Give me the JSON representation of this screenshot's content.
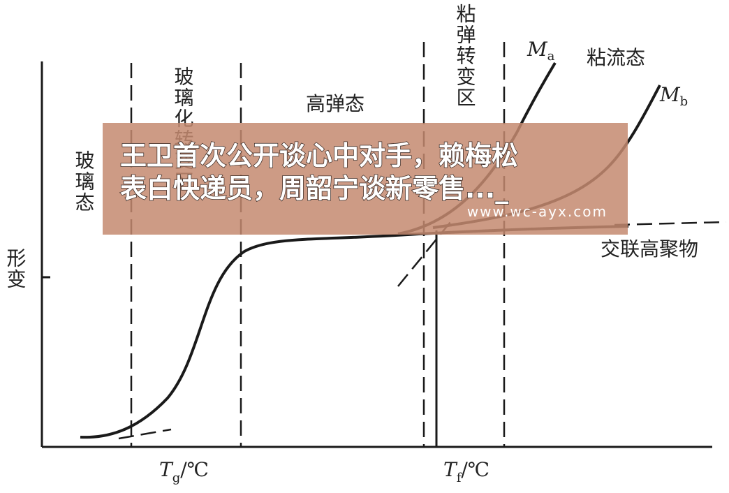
{
  "figure": {
    "y_axis_label": "形变",
    "regions": [
      "玻璃态",
      "玻璃化转变区",
      "高弹态",
      "粘弹转变区",
      "粘流态"
    ],
    "curves": [
      {
        "main": "M",
        "sub": "a"
      },
      {
        "main": "M",
        "sub": "b"
      }
    ],
    "crosslinked_label": "交联高聚物",
    "x_ticks": [
      {
        "main": "T",
        "sub": "g",
        "unit": "/℃"
      },
      {
        "main": "T",
        "sub": "f",
        "unit": "/℃"
      }
    ]
  },
  "banner": {
    "lines": [
      "王卫首次公开谈心中对手，赖梅松",
      "表白快递员，周韶宁谈新零售..._"
    ],
    "url": "www.wc-ayx.com"
  }
}
